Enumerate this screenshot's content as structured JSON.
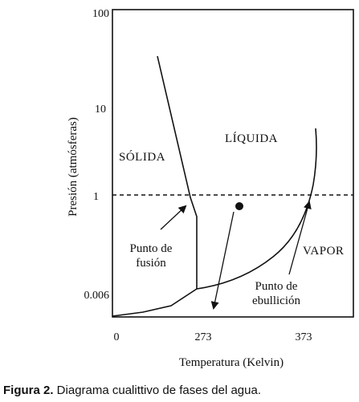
{
  "diagram": {
    "y_axis": {
      "title": "Presión (atmósferas)",
      "ticks": [
        "100",
        "10",
        "1",
        "0.006"
      ]
    },
    "x_axis": {
      "title": "Temperatura (Kelvin)",
      "ticks": [
        "0",
        "273",
        "373"
      ]
    },
    "regions": {
      "solid": "SÓLIDA",
      "liquid": "LÍQUIDA",
      "vapor": "VAPOR"
    },
    "annotations": {
      "melting_point": [
        "Punto de",
        "fusión"
      ],
      "boiling_point": [
        "Punto de",
        "ebullición"
      ]
    },
    "reference_line": {
      "pressure": "1",
      "style": "dashed"
    },
    "colors": {
      "ink": "#111111",
      "background": "#ffffff"
    }
  },
  "caption": {
    "label": "Figura 2.",
    "text": " Diagrama cualittivo de fases del agua."
  }
}
